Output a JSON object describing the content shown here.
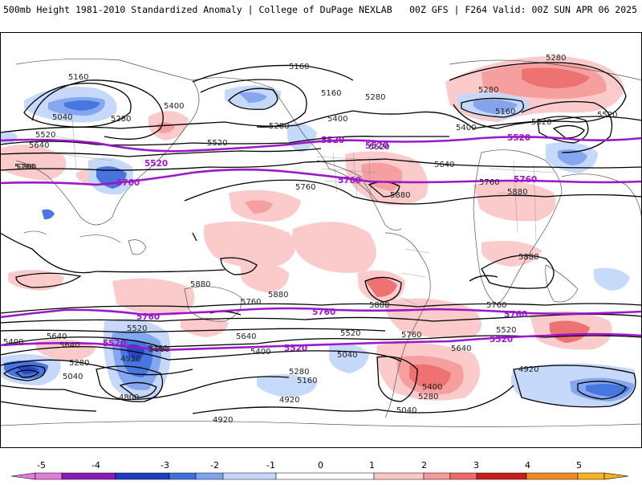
{
  "header": {
    "left_title": "500mb Height 1981-2010 Standardized Anomaly | College of DuPage NEXLAB",
    "right_title": "00Z GFS | F264 Valid: 00Z SUN APR 06 2025"
  },
  "colors": {
    "contour": "#000000",
    "purple_contour": "#9c17c9",
    "land_border": "#555555",
    "neg5": "#e27bd9",
    "neg4": "#8a1ab8",
    "neg3": "#1d3ec2",
    "neg2": "#3e6fe0",
    "neg1_5": "#7ea3f0",
    "neg1": "#c3d8fa",
    "pos1": "#fbc8c8",
    "pos1_5": "#f59a9a",
    "pos2": "#ef6b6b",
    "pos3": "#c81e1e",
    "pos4": "#f28a24",
    "pos5": "#f6b31e"
  },
  "contour_labels": [
    {
      "text": "5160"
    },
    {
      "text": "5040"
    },
    {
      "text": "5280"
    },
    {
      "text": "5400"
    },
    {
      "text": "5520"
    },
    {
      "text": "5640"
    },
    {
      "text": "5760"
    },
    {
      "text": "5520"
    },
    {
      "text": "5160"
    },
    {
      "text": "5160"
    },
    {
      "text": "5280"
    },
    {
      "text": "5280"
    },
    {
      "text": "5400"
    },
    {
      "text": "5520"
    },
    {
      "text": "5760"
    },
    {
      "text": "5880"
    },
    {
      "text": "5280"
    },
    {
      "text": "5280"
    },
    {
      "text": "5160"
    },
    {
      "text": "5400"
    },
    {
      "text": "5520"
    },
    {
      "text": "5640"
    },
    {
      "text": "5760"
    },
    {
      "text": "5880"
    },
    {
      "text": "5880"
    },
    {
      "text": "5880"
    },
    {
      "text": "5880"
    },
    {
      "text": "5880"
    },
    {
      "text": "5760"
    },
    {
      "text": "5760"
    },
    {
      "text": "5760"
    },
    {
      "text": "5640"
    },
    {
      "text": "5400"
    },
    {
      "text": "5280"
    },
    {
      "text": "5520"
    },
    {
      "text": "5160"
    },
    {
      "text": "4920"
    },
    {
      "text": "4800"
    },
    {
      "text": "5040"
    },
    {
      "text": "5400"
    },
    {
      "text": "5640"
    },
    {
      "text": "5520"
    },
    {
      "text": "5280"
    },
    {
      "text": "5160"
    },
    {
      "text": "4920"
    },
    {
      "text": "4920"
    },
    {
      "text": "5040"
    },
    {
      "text": "5640"
    },
    {
      "text": "5400"
    },
    {
      "text": "5280"
    },
    {
      "text": "5160"
    },
    {
      "text": "5040"
    },
    {
      "text": "5520"
    },
    {
      "text": "5760"
    },
    {
      "text": "4920"
    },
    {
      "text": "5520"
    },
    {
      "text": "5640"
    }
  ],
  "purple_labels": [
    {
      "text": "5520"
    },
    {
      "text": "5760"
    },
    {
      "text": "5520"
    },
    {
      "text": "5520"
    },
    {
      "text": "5760"
    },
    {
      "text": "5520"
    },
    {
      "text": "5760"
    },
    {
      "text": "5760"
    },
    {
      "text": "5760"
    },
    {
      "text": "5760"
    },
    {
      "text": "5520"
    },
    {
      "text": "5520"
    },
    {
      "text": "5520"
    }
  ],
  "colorbar": {
    "ticks": [
      "-5",
      "-4",
      "-3",
      "-2",
      "-1",
      "0",
      "1",
      "2",
      "3",
      "4",
      "5"
    ]
  }
}
